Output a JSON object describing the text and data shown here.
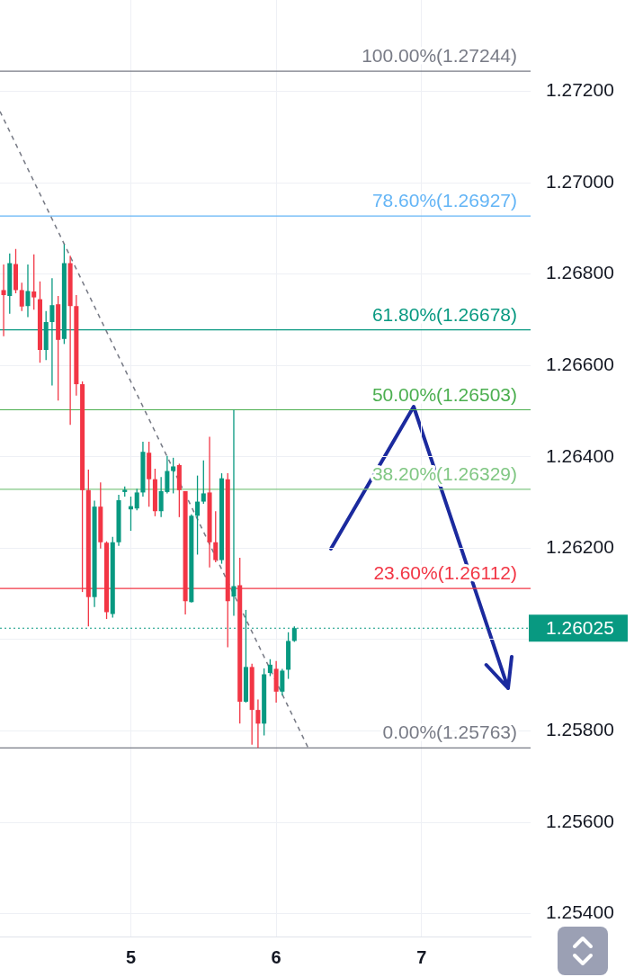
{
  "chart_data": {
    "type": "candlestick",
    "series": [
      {
        "type": "candlestick",
        "x": [
          4.125,
          4.1667,
          4.2083,
          4.25,
          4.2917,
          4.3333,
          4.375,
          4.4167,
          4.4583,
          4.5,
          4.5417,
          4.5833,
          4.625,
          4.6667,
          4.7083,
          4.75,
          4.7917,
          4.8333,
          4.875,
          4.9167,
          4.9583,
          5,
          5.0417,
          5.0833,
          5.125,
          5.1667,
          5.2083,
          5.25,
          5.2917,
          5.3333,
          5.375,
          5.4167,
          5.4583,
          5.5,
          5.5417,
          5.5833,
          5.625,
          5.6667,
          5.7083,
          5.75,
          5.7917,
          5.8333,
          5.875,
          5.9167,
          5.9583,
          6,
          6.0417,
          6.0833,
          6.125
        ],
        "ohlc": [
          [
            1.26765,
            1.26821,
            1.26664,
            1.26754
          ],
          [
            1.26752,
            1.26845,
            1.26713,
            1.26824
          ],
          [
            1.26822,
            1.26855,
            1.26758,
            1.26765
          ],
          [
            1.26765,
            1.26781,
            1.26719,
            1.26729
          ],
          [
            1.2673,
            1.26821,
            1.26706,
            1.26763
          ],
          [
            1.26762,
            1.26843,
            1.26722,
            1.26749
          ],
          [
            1.26745,
            1.26784,
            1.26606,
            1.26634
          ],
          [
            1.26634,
            1.26719,
            1.26612,
            1.26695
          ],
          [
            1.26695,
            1.26791,
            1.26556,
            1.26732
          ],
          [
            1.26734,
            1.26752,
            1.26523,
            1.26656
          ],
          [
            1.26658,
            1.26865,
            1.26647,
            1.26824
          ],
          [
            1.26824,
            1.2684,
            1.2647,
            1.2673
          ],
          [
            1.2673,
            1.26754,
            1.26534,
            1.26559
          ],
          [
            1.26559,
            1.26565,
            1.26104,
            1.26327
          ],
          [
            1.26327,
            1.26372,
            1.26029,
            1.26093
          ],
          [
            1.26093,
            1.26304,
            1.26071,
            1.26291
          ],
          [
            1.26291,
            1.26344,
            1.26199,
            1.26213
          ],
          [
            1.26212,
            1.26215,
            1.26045,
            1.2606
          ],
          [
            1.26056,
            1.26225,
            1.26048,
            1.26213
          ],
          [
            1.26213,
            1.26317,
            1.26205,
            1.26305
          ],
          [
            1.26323,
            1.26335,
            1.26313,
            1.26328
          ],
          [
            1.26285,
            1.26313,
            1.26238,
            1.26292
          ],
          [
            1.26287,
            1.2633,
            1.26283,
            1.26322
          ],
          [
            1.26322,
            1.26433,
            1.26313,
            1.26411
          ],
          [
            1.26409,
            1.26433,
            1.26291,
            1.26351
          ],
          [
            1.26351,
            1.26374,
            1.2627,
            1.26281
          ],
          [
            1.26281,
            1.26356,
            1.26268,
            1.26325
          ],
          [
            1.26323,
            1.26402,
            1.2632,
            1.26369
          ],
          [
            1.26369,
            1.26398,
            1.2632,
            1.26379
          ],
          [
            1.26382,
            1.26385,
            1.26268,
            1.26327
          ],
          [
            1.26325,
            1.26325,
            1.26055,
            1.26084
          ],
          [
            1.26082,
            1.26274,
            1.26081,
            1.26271
          ],
          [
            1.26271,
            1.26359,
            1.26186,
            1.26302
          ],
          [
            1.26302,
            1.26392,
            1.26297,
            1.2632
          ],
          [
            1.26322,
            1.26444,
            1.26158,
            1.26213
          ],
          [
            1.26213,
            1.26281,
            1.26169,
            1.26174
          ],
          [
            1.26174,
            1.26364,
            1.26166,
            1.26353
          ],
          [
            1.26351,
            1.26364,
            1.25983,
            1.26084
          ],
          [
            1.26094,
            1.26503,
            1.26052,
            1.26117
          ],
          [
            1.26119,
            1.26179,
            1.25816,
            1.25864
          ],
          [
            1.25864,
            1.26065,
            1.25862,
            1.2594
          ],
          [
            1.2594,
            1.25947,
            1.2577,
            1.25846
          ],
          [
            1.25846,
            1.25869,
            1.25763,
            1.25816
          ],
          [
            1.25816,
            1.25937,
            1.2579,
            1.25924
          ],
          [
            1.25927,
            1.25957,
            1.2592,
            1.25945
          ],
          [
            1.25936,
            1.25953,
            1.25862,
            1.25886
          ],
          [
            1.25886,
            1.25936,
            1.25878,
            1.25932
          ],
          [
            1.25934,
            1.26016,
            1.25914,
            1.25997
          ],
          [
            1.25997,
            1.26029,
            1.25995,
            1.26025
          ]
        ],
        "colors": [
          "#f23645",
          "#089981",
          "#f23645",
          "#f23645",
          "#089981",
          "#f23645",
          "#f23645",
          "#089981",
          "#089981",
          "#f23645",
          "#089981",
          "#f23645",
          "#f23645",
          "#f23645",
          "#f23645",
          "#089981",
          "#f23645",
          "#f23645",
          "#089981",
          "#089981",
          "#089981",
          "#089981",
          "#089981",
          "#089981",
          "#f23645",
          "#f23645",
          "#089981",
          "#089981",
          "#089981",
          "#f23645",
          "#f23645",
          "#089981",
          "#089981",
          "#089981",
          "#f23645",
          "#f23645",
          "#089981",
          "#f23645",
          "#089981",
          "#f23645",
          "#089981",
          "#f23645",
          "#f23645",
          "#089981",
          "#089981",
          "#f23645",
          "#089981",
          "#089981",
          "#089981"
        ]
      },
      {
        "type": "line",
        "x": [
          4.1,
          6.22
        ],
        "values": [
          1.27156,
          1.25763
        ],
        "color": "#787b86",
        "line_style": "dashed"
      }
    ],
    "xlim": [
      4.1,
      7.75
    ],
    "xticks": [
      5,
      6,
      7
    ],
    "ylim": [
      1.2535,
      1.274
    ],
    "yticks": [
      {
        "value": 1.254,
        "label": "1.25400"
      },
      {
        "value": 1.256,
        "label": "1.25600"
      },
      {
        "value": 1.258,
        "label": "1.25800"
      },
      {
        "value": 1.26,
        "label": null
      },
      {
        "value": 1.262,
        "label": "1.26200"
      },
      {
        "value": 1.264,
        "label": "1.26400"
      },
      {
        "value": 1.266,
        "label": "1.26600"
      },
      {
        "value": 1.268,
        "label": "1.26800"
      },
      {
        "value": 1.27,
        "label": "1.27000"
      },
      {
        "value": 1.272,
        "label": "1.27200"
      }
    ],
    "ref_lines": [
      {
        "axis": "y",
        "value": 1.27244,
        "label": "100.00%(1.27244)",
        "color": "#787b86"
      },
      {
        "axis": "y",
        "value": 1.26927,
        "label": "78.60%(1.26927)",
        "color": "#64b5f6"
      },
      {
        "axis": "y",
        "value": 1.26678,
        "label": "61.80%(1.26678)",
        "color": "#089981"
      },
      {
        "axis": "y",
        "value": 1.26503,
        "label": "50.00%(1.26503)",
        "color": "#4caf50"
      },
      {
        "axis": "y",
        "value": 1.26329,
        "label": "38.20%(1.26329)",
        "color": "#81c784"
      },
      {
        "axis": "y",
        "value": 1.26112,
        "label": "23.60%(1.26112)",
        "color": "#f23645"
      },
      {
        "axis": "y",
        "value": 1.25763,
        "label": "0.00%(1.25763)",
        "color": "#787b86"
      },
      {
        "axis": "y",
        "value": 1.26025,
        "label": "1.26025",
        "color": "#089981",
        "line_style": "dotted"
      }
    ],
    "grid": true
  }
}
